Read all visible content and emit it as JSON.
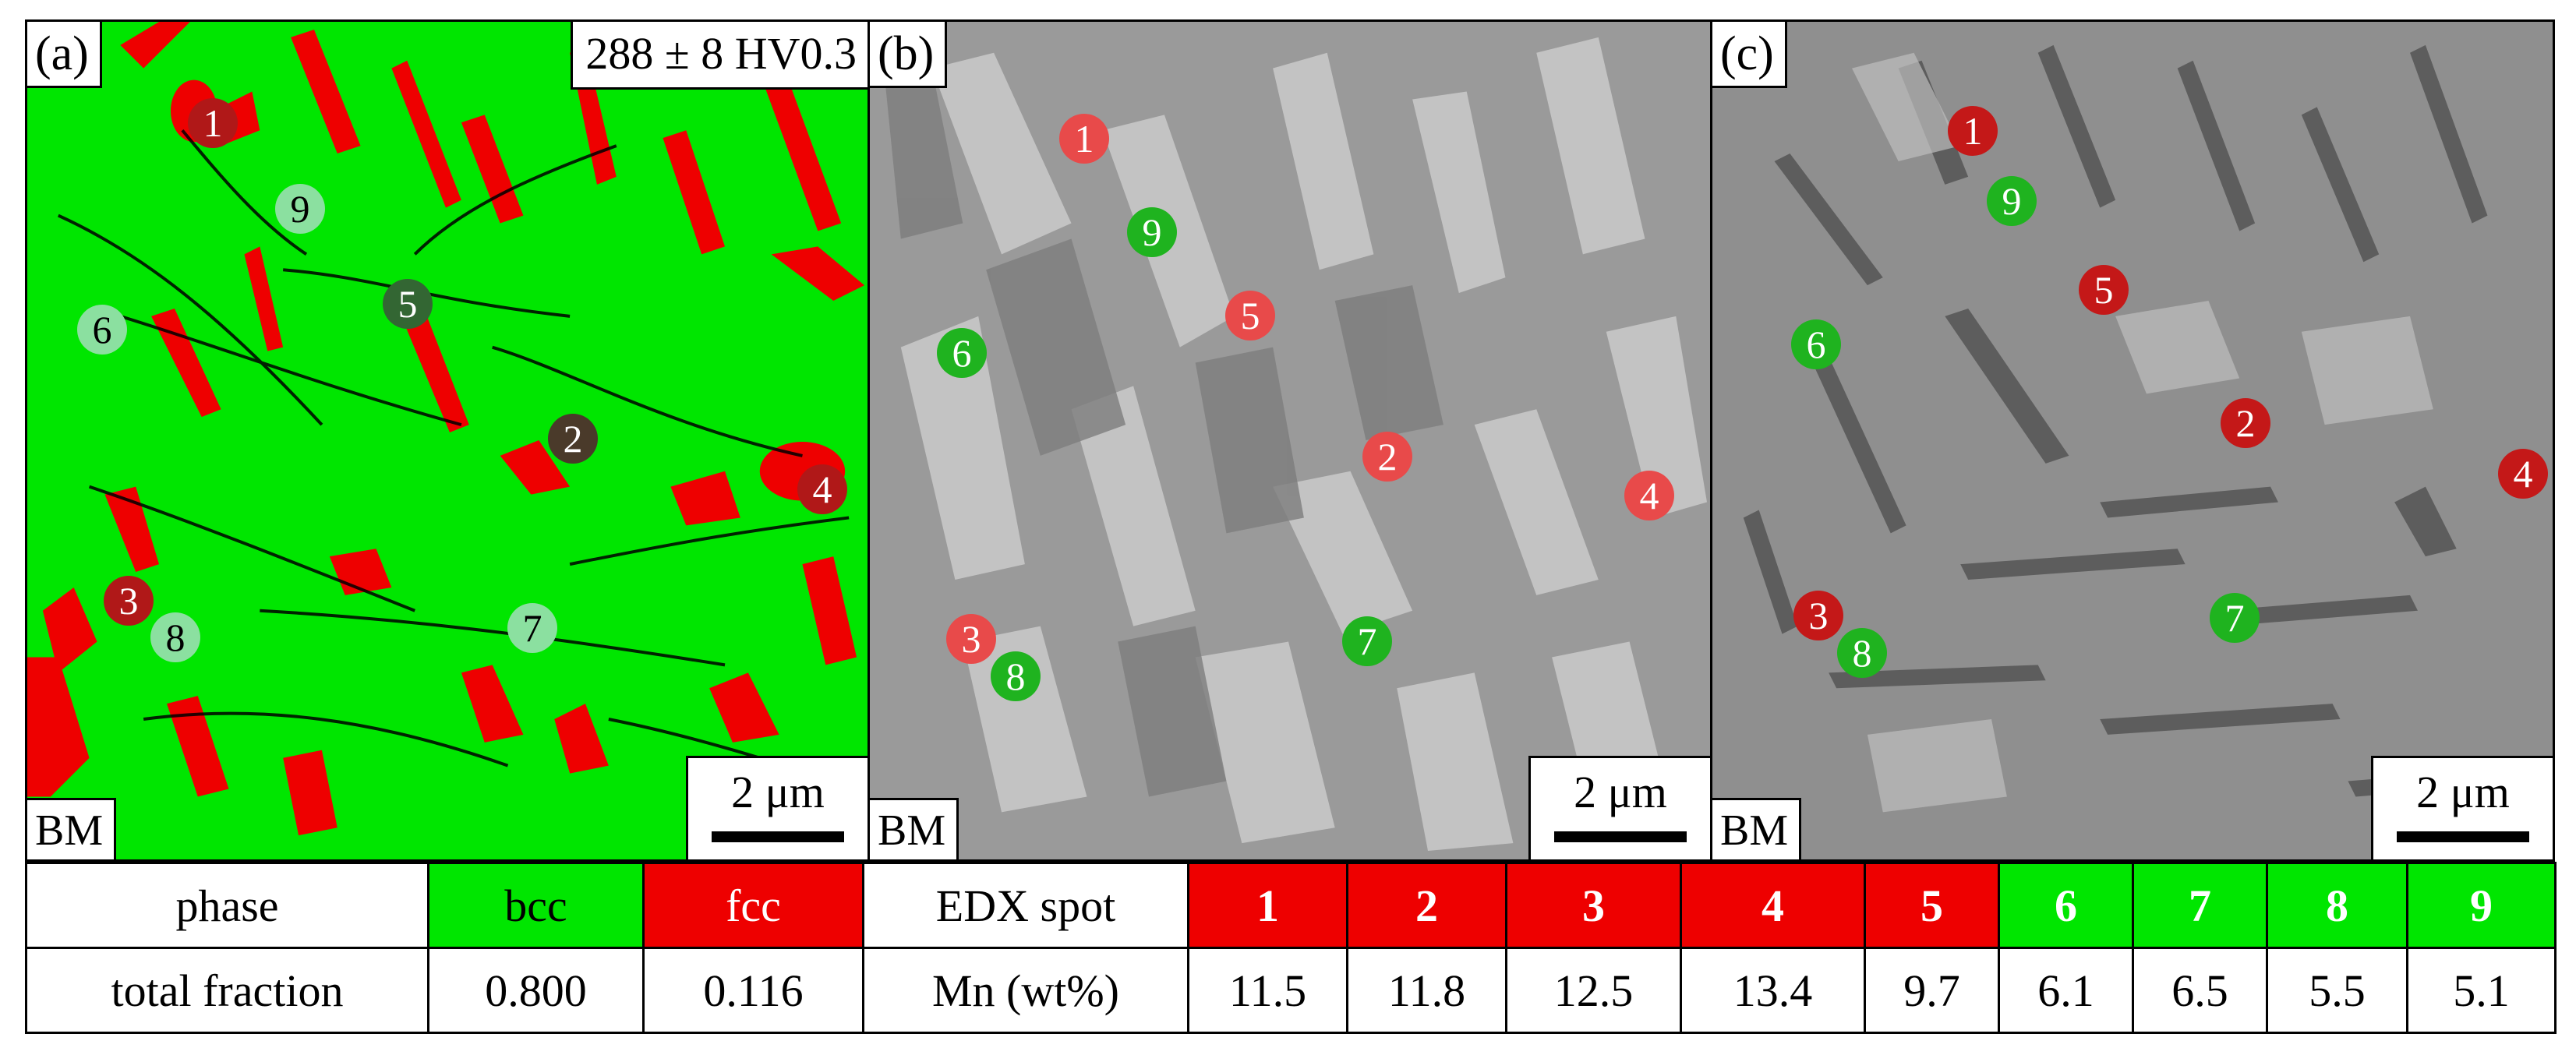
{
  "panels": [
    {
      "label": "(a)",
      "tag": "BM",
      "scale": "2 μm",
      "hardness": "288 ± 8 HV0.3"
    },
    {
      "label": "(b)",
      "tag": "BM",
      "scale": "2 μm"
    },
    {
      "label": "(c)",
      "tag": "BM",
      "scale": "2 μm"
    }
  ],
  "spots": [
    "1",
    "2",
    "3",
    "4",
    "5",
    "6",
    "7",
    "8",
    "9"
  ],
  "table": {
    "row1": {
      "phase_header": "phase",
      "bcc": "bcc",
      "fcc": "fcc",
      "edx_header": "EDX spot",
      "spots": [
        "1",
        "2",
        "3",
        "4",
        "5",
        "6",
        "7",
        "8",
        "9"
      ]
    },
    "row2": {
      "fraction_header": "total fraction",
      "bcc_value": "0.800",
      "fcc_value": "0.116",
      "mn_header": "Mn (wt%)",
      "mn_values": [
        "11.5",
        "11.8",
        "12.5",
        "13.4",
        "9.7",
        "6.1",
        "6.5",
        "5.5",
        "5.1"
      ]
    }
  },
  "colors": {
    "bcc": "#00e600",
    "fcc": "#ee0000",
    "spot_red": "#e84a4a",
    "spot_green": "#1fb31f"
  }
}
